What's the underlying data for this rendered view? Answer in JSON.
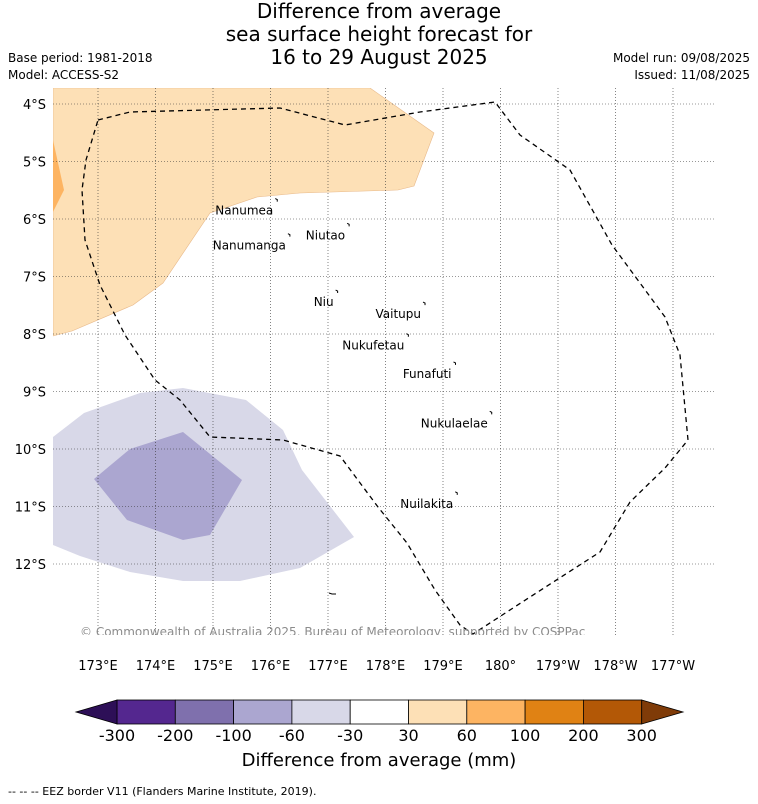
{
  "title": {
    "line1": "Difference from average",
    "line2": "sea surface height forecast for",
    "line3": "16 to 29 August 2025"
  },
  "meta_left": {
    "base_period": "Base period: 1981-2018",
    "model": "Model: ACCESS-S2"
  },
  "meta_right": {
    "model_run": "Model run: 09/08/2025",
    "issued": "Issued: 11/08/2025"
  },
  "map": {
    "lat_labels": [
      "4°S",
      "5°S",
      "6°S",
      "7°S",
      "8°S",
      "9°S",
      "10°S",
      "11°S",
      "12°S"
    ],
    "lon_labels": [
      "173°E",
      "174°E",
      "175°E",
      "176°E",
      "177°E",
      "178°E",
      "179°E",
      "180°",
      "179°W",
      "178°W",
      "177°W"
    ],
    "islands": [
      {
        "name": "Nanumea",
        "lon": 176.1,
        "lat": -5.68
      },
      {
        "name": "Nanumanga",
        "lon": 176.32,
        "lat": -6.29
      },
      {
        "name": "Niutao",
        "lon": 177.35,
        "lat": -6.11
      },
      {
        "name": "Niu",
        "lon": 177.15,
        "lat": -7.27
      },
      {
        "name": "Vaitupu",
        "lon": 178.67,
        "lat": -7.48
      },
      {
        "name": "Nukufetau",
        "lon": 178.38,
        "lat": -8.03
      },
      {
        "name": "Funafuti",
        "lon": 179.2,
        "lat": -8.52
      },
      {
        "name": "Nukulaelae",
        "lon": 179.83,
        "lat": -9.38
      },
      {
        "name": "Nuilakita",
        "lon": 179.23,
        "lat": -10.78
      }
    ],
    "copyright": "© Commonwealth of Australia 2025, Bureau of Meteorology, supported by COSPPac"
  },
  "colorbar": {
    "ticks": [
      "-300",
      "-200",
      "-100",
      "-60",
      "-30",
      "30",
      "60",
      "100",
      "200",
      "300"
    ],
    "colors": [
      "#2d0f57",
      "#54278f",
      "#7f70ad",
      "#aba6d0",
      "#d8d8e8",
      "#ffffff",
      "#fde0b6",
      "#fdb462",
      "#e08214",
      "#b35806",
      "#7f3b08"
    ],
    "label": "Difference from average (mm)"
  },
  "footer": "--  --  -- EEZ border V11 (Flanders Marine Institute, 2019)."
}
